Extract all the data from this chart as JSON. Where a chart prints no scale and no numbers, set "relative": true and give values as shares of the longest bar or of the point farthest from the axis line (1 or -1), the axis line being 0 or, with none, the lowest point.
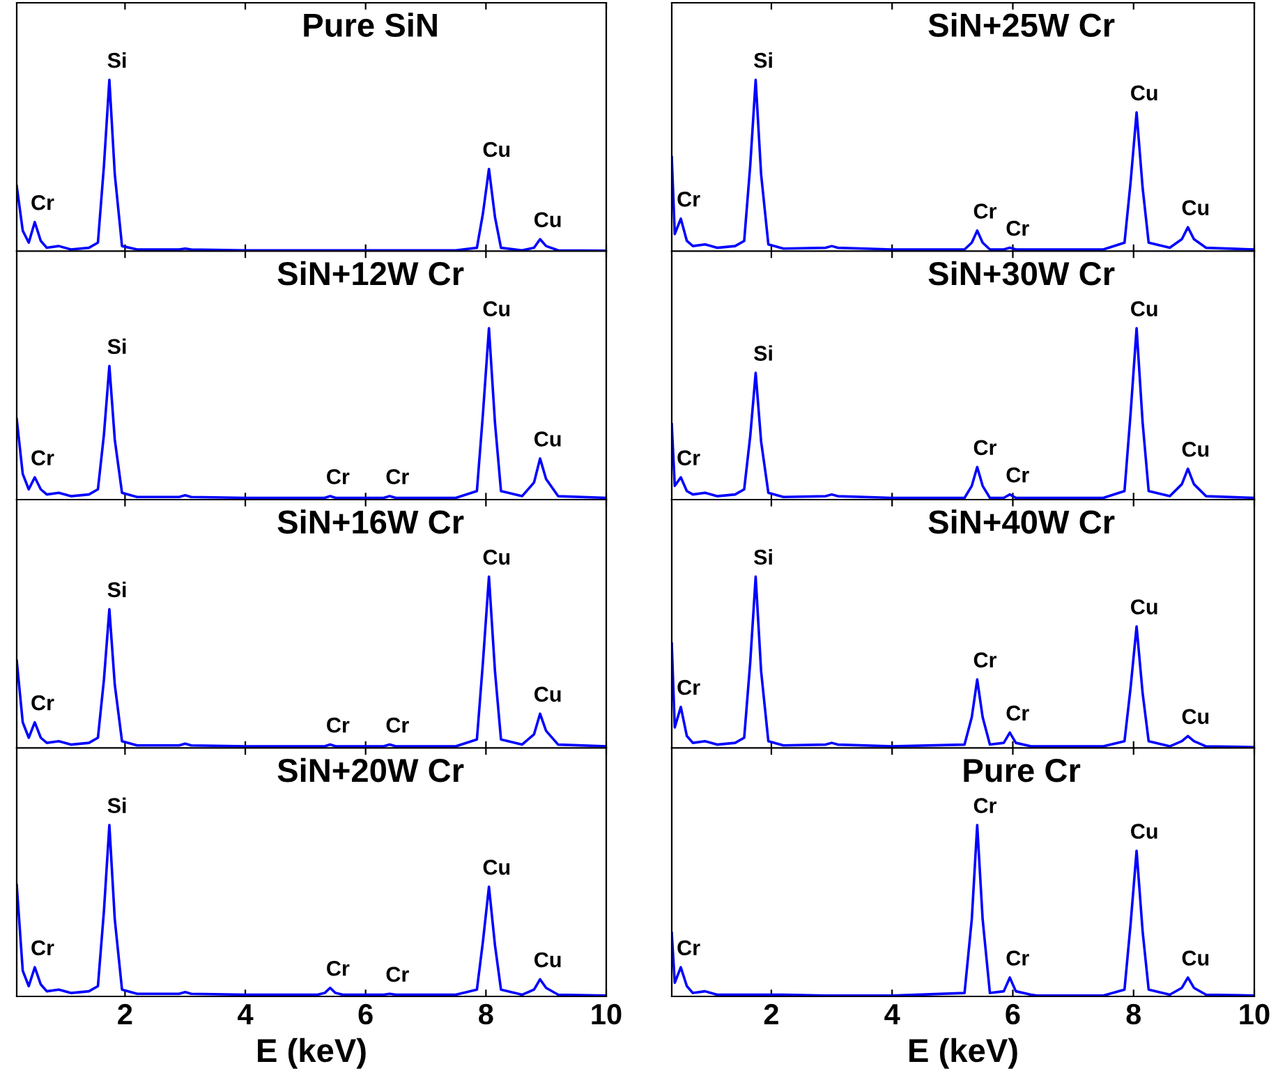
{
  "chart_data": [
    {
      "type": "line",
      "title": "Pure SiN",
      "relative": true,
      "xlim": [
        0.2,
        10
      ],
      "xticks": [
        2,
        4,
        6,
        8,
        10
      ],
      "tick_labels": false,
      "series": [
        {
          "color": "#0000ff",
          "x": [
            0.2,
            0.3,
            0.4,
            0.5,
            0.6,
            0.7,
            0.9,
            1.1,
            1.4,
            1.55,
            1.65,
            1.74,
            1.83,
            1.95,
            2.2,
            2.9,
            3.0,
            3.1,
            4.0,
            5.2,
            5.32,
            5.41,
            5.5,
            5.62,
            5.85,
            5.95,
            6.05,
            6.3,
            6.4,
            6.5,
            7.5,
            7.85,
            7.95,
            8.05,
            8.15,
            8.25,
            8.6,
            8.8,
            8.9,
            9.0,
            9.2,
            10
          ],
          "values": [
            0.38,
            0.12,
            0.05,
            0.17,
            0.06,
            0.02,
            0.03,
            0.01,
            0.02,
            0.05,
            0.5,
            1,
            0.45,
            0.03,
            0.01,
            0.01,
            0.015,
            0.01,
            0.005,
            0.005,
            0.005,
            0.005,
            0.005,
            0.005,
            0.005,
            0.005,
            0.005,
            0.005,
            0.005,
            0.005,
            0.005,
            0.02,
            0.22,
            0.48,
            0.2,
            0.02,
            0.005,
            0.02,
            0.07,
            0.03,
            0.005,
            0.003
          ]
        }
      ],
      "annotations": [
        {
          "text": "Si",
          "x": 1.74,
          "y": 1
        },
        {
          "text": "Cr",
          "x": 0.5,
          "y": 0.17
        },
        {
          "text": "Cu",
          "x": 8.05,
          "y": 0.48
        },
        {
          "text": "Cu",
          "x": 8.9,
          "y": 0.07
        }
      ]
    },
    {
      "type": "line",
      "title": "SiN+25W Cr",
      "relative": true,
      "xlim": [
        0.35,
        10
      ],
      "xticks": [
        2,
        4,
        6,
        8,
        10
      ],
      "tick_labels": false,
      "series": [
        {
          "color": "#0000ff",
          "x": [
            0.35,
            0.4,
            0.5,
            0.6,
            0.7,
            0.9,
            1.1,
            1.4,
            1.55,
            1.65,
            1.74,
            1.83,
            1.95,
            2.2,
            2.9,
            3.0,
            3.1,
            4.0,
            5.2,
            5.32,
            5.41,
            5.5,
            5.62,
            5.85,
            5.95,
            6.05,
            6.3,
            6.4,
            6.5,
            7.5,
            7.85,
            7.95,
            8.05,
            8.15,
            8.25,
            8.6,
            8.8,
            8.9,
            9.0,
            9.2,
            10
          ],
          "values": [
            0.55,
            0.1,
            0.19,
            0.06,
            0.03,
            0.04,
            0.02,
            0.03,
            0.06,
            0.5,
            1,
            0.45,
            0.04,
            0.015,
            0.02,
            0.03,
            0.02,
            0.01,
            0.01,
            0.05,
            0.12,
            0.05,
            0.01,
            0.01,
            0.02,
            0.01,
            0.01,
            0.01,
            0.01,
            0.01,
            0.05,
            0.4,
            0.81,
            0.37,
            0.05,
            0.02,
            0.07,
            0.14,
            0.07,
            0.02,
            0.01
          ]
        }
      ],
      "annotations": [
        {
          "text": "Si",
          "x": 1.74,
          "y": 1
        },
        {
          "text": "Cr",
          "x": 0.5,
          "y": 0.19
        },
        {
          "text": "Cr",
          "x": 5.41,
          "y": 0.12
        },
        {
          "text": "Cr",
          "x": 5.95,
          "y": 0.02
        },
        {
          "text": "Cu",
          "x": 8.05,
          "y": 0.81
        },
        {
          "text": "Cu",
          "x": 8.9,
          "y": 0.14
        }
      ]
    },
    {
      "type": "line",
      "title": "SiN+12W Cr",
      "relative": true,
      "xlim": [
        0.2,
        10
      ],
      "xticks": [
        2,
        4,
        6,
        8,
        10
      ],
      "tick_labels": false,
      "series": [
        {
          "color": "#0000ff",
          "x": [
            0.2,
            0.3,
            0.4,
            0.5,
            0.6,
            0.7,
            0.9,
            1.1,
            1.4,
            1.55,
            1.65,
            1.74,
            1.83,
            1.95,
            2.2,
            2.9,
            3.0,
            3.1,
            4.0,
            5.2,
            5.32,
            5.41,
            5.5,
            5.62,
            5.85,
            5.95,
            6.05,
            6.3,
            6.4,
            6.5,
            7.5,
            7.85,
            7.95,
            8.05,
            8.15,
            8.25,
            8.6,
            8.8,
            8.9,
            9.0,
            9.2,
            10
          ],
          "values": [
            0.47,
            0.15,
            0.06,
            0.13,
            0.06,
            0.03,
            0.04,
            0.02,
            0.03,
            0.06,
            0.38,
            0.78,
            0.35,
            0.04,
            0.015,
            0.015,
            0.025,
            0.015,
            0.01,
            0.01,
            0.01,
            0.02,
            0.01,
            0.01,
            0.01,
            0.01,
            0.01,
            0.01,
            0.02,
            0.01,
            0.01,
            0.05,
            0.5,
            1,
            0.45,
            0.05,
            0.02,
            0.1,
            0.24,
            0.12,
            0.02,
            0.01
          ]
        }
      ],
      "annotations": [
        {
          "text": "Si",
          "x": 1.74,
          "y": 0.78
        },
        {
          "text": "Cr",
          "x": 0.5,
          "y": 0.13
        },
        {
          "text": "Cr",
          "x": 5.41,
          "y": 0.02
        },
        {
          "text": "Cr",
          "x": 6.4,
          "y": 0.02
        },
        {
          "text": "Cu",
          "x": 8.05,
          "y": 1
        },
        {
          "text": "Cu",
          "x": 8.9,
          "y": 0.24
        }
      ]
    },
    {
      "type": "line",
      "title": "SiN+30W Cr",
      "relative": true,
      "xlim": [
        0.35,
        10
      ],
      "xticks": [
        2,
        4,
        6,
        8,
        10
      ],
      "tick_labels": false,
      "series": [
        {
          "color": "#0000ff",
          "x": [
            0.35,
            0.4,
            0.5,
            0.6,
            0.7,
            0.9,
            1.1,
            1.4,
            1.55,
            1.65,
            1.74,
            1.83,
            1.95,
            2.2,
            2.9,
            3.0,
            3.1,
            4.0,
            5.2,
            5.32,
            5.41,
            5.5,
            5.62,
            5.85,
            5.95,
            6.05,
            6.3,
            6.4,
            6.5,
            7.5,
            7.85,
            7.95,
            8.05,
            8.15,
            8.25,
            8.6,
            8.8,
            8.9,
            9.0,
            9.2,
            10
          ],
          "values": [
            0.44,
            0.08,
            0.13,
            0.05,
            0.03,
            0.04,
            0.02,
            0.03,
            0.06,
            0.37,
            0.74,
            0.34,
            0.04,
            0.015,
            0.02,
            0.03,
            0.02,
            0.01,
            0.01,
            0.08,
            0.19,
            0.08,
            0.01,
            0.01,
            0.03,
            0.01,
            0.01,
            0.01,
            0.01,
            0.01,
            0.05,
            0.5,
            1,
            0.45,
            0.05,
            0.02,
            0.09,
            0.18,
            0.09,
            0.02,
            0.01
          ]
        }
      ],
      "annotations": [
        {
          "text": "Si",
          "x": 1.74,
          "y": 0.74
        },
        {
          "text": "Cr",
          "x": 0.5,
          "y": 0.13
        },
        {
          "text": "Cr",
          "x": 5.41,
          "y": 0.19
        },
        {
          "text": "Cr",
          "x": 5.95,
          "y": 0.03
        },
        {
          "text": "Cu",
          "x": 8.05,
          "y": 1
        },
        {
          "text": "Cu",
          "x": 8.9,
          "y": 0.18
        }
      ]
    },
    {
      "type": "line",
      "title": "SiN+16W Cr",
      "relative": true,
      "xlim": [
        0.2,
        10
      ],
      "xticks": [
        2,
        4,
        6,
        8,
        10
      ],
      "tick_labels": false,
      "series": [
        {
          "color": "#0000ff",
          "x": [
            0.2,
            0.3,
            0.4,
            0.5,
            0.6,
            0.7,
            0.9,
            1.1,
            1.4,
            1.55,
            1.65,
            1.74,
            1.83,
            1.95,
            2.2,
            2.9,
            3.0,
            3.1,
            4.0,
            5.2,
            5.32,
            5.41,
            5.5,
            5.62,
            5.85,
            5.95,
            6.05,
            6.3,
            6.4,
            6.5,
            7.5,
            7.85,
            7.95,
            8.05,
            8.15,
            8.25,
            8.6,
            8.8,
            8.9,
            9.0,
            9.2,
            10
          ],
          "values": [
            0.51,
            0.15,
            0.06,
            0.15,
            0.06,
            0.03,
            0.04,
            0.02,
            0.03,
            0.06,
            0.4,
            0.81,
            0.37,
            0.04,
            0.015,
            0.015,
            0.025,
            0.015,
            0.01,
            0.01,
            0.01,
            0.02,
            0.01,
            0.01,
            0.01,
            0.01,
            0.01,
            0.01,
            0.02,
            0.01,
            0.01,
            0.05,
            0.5,
            1,
            0.45,
            0.05,
            0.02,
            0.08,
            0.2,
            0.1,
            0.02,
            0.01
          ]
        }
      ],
      "annotations": [
        {
          "text": "Si",
          "x": 1.74,
          "y": 0.81
        },
        {
          "text": "Cr",
          "x": 0.5,
          "y": 0.15
        },
        {
          "text": "Cr",
          "x": 5.41,
          "y": 0.02
        },
        {
          "text": "Cr",
          "x": 6.4,
          "y": 0.02
        },
        {
          "text": "Cu",
          "x": 8.05,
          "y": 1
        },
        {
          "text": "Cu",
          "x": 8.9,
          "y": 0.2
        }
      ]
    },
    {
      "type": "line",
      "title": "SiN+40W Cr",
      "relative": true,
      "xlim": [
        0.35,
        10
      ],
      "xticks": [
        2,
        4,
        6,
        8,
        10
      ],
      "tick_labels": false,
      "series": [
        {
          "color": "#0000ff",
          "x": [
            0.35,
            0.4,
            0.5,
            0.6,
            0.7,
            0.9,
            1.1,
            1.4,
            1.55,
            1.65,
            1.74,
            1.83,
            1.95,
            2.2,
            2.9,
            3.0,
            3.1,
            4.0,
            5.2,
            5.32,
            5.41,
            5.5,
            5.62,
            5.85,
            5.95,
            6.05,
            6.3,
            6.4,
            6.5,
            7.5,
            7.85,
            7.95,
            8.05,
            8.15,
            8.25,
            8.6,
            8.8,
            8.9,
            9.0,
            9.2,
            10
          ],
          "values": [
            0.61,
            0.12,
            0.24,
            0.07,
            0.03,
            0.04,
            0.02,
            0.03,
            0.06,
            0.5,
            1,
            0.45,
            0.04,
            0.015,
            0.02,
            0.03,
            0.02,
            0.01,
            0.02,
            0.18,
            0.4,
            0.18,
            0.02,
            0.03,
            0.09,
            0.03,
            0.01,
            0.01,
            0.01,
            0.01,
            0.04,
            0.35,
            0.71,
            0.32,
            0.04,
            0.01,
            0.04,
            0.07,
            0.04,
            0.01,
            0.005
          ]
        }
      ],
      "annotations": [
        {
          "text": "Si",
          "x": 1.74,
          "y": 1
        },
        {
          "text": "Cr",
          "x": 0.5,
          "y": 0.24
        },
        {
          "text": "Cr",
          "x": 5.41,
          "y": 0.4
        },
        {
          "text": "Cr",
          "x": 5.95,
          "y": 0.09
        },
        {
          "text": "Cu",
          "x": 8.05,
          "y": 0.71
        },
        {
          "text": "Cu",
          "x": 8.9,
          "y": 0.07
        }
      ]
    },
    {
      "type": "line",
      "title": "SiN+20W Cr",
      "relative": true,
      "xlim": [
        0.2,
        10
      ],
      "xticks": [
        2,
        4,
        6,
        8,
        10
      ],
      "tick_labels": "x",
      "xlabel": "E (keV)",
      "series": [
        {
          "color": "#0000ff",
          "x": [
            0.2,
            0.3,
            0.4,
            0.5,
            0.6,
            0.7,
            0.9,
            1.1,
            1.4,
            1.55,
            1.65,
            1.74,
            1.83,
            1.95,
            2.2,
            2.9,
            3.0,
            3.1,
            4.0,
            5.2,
            5.32,
            5.41,
            5.5,
            5.62,
            5.85,
            5.95,
            6.05,
            6.3,
            6.4,
            6.5,
            7.5,
            7.85,
            7.95,
            8.05,
            8.15,
            8.25,
            8.6,
            8.8,
            8.9,
            9.0,
            9.2,
            10
          ],
          "values": [
            0.65,
            0.15,
            0.06,
            0.17,
            0.07,
            0.03,
            0.04,
            0.02,
            0.03,
            0.06,
            0.5,
            1,
            0.45,
            0.04,
            0.015,
            0.015,
            0.025,
            0.015,
            0.01,
            0.01,
            0.02,
            0.05,
            0.02,
            0.01,
            0.01,
            0.01,
            0.01,
            0.01,
            0.015,
            0.01,
            0.01,
            0.04,
            0.32,
            0.64,
            0.3,
            0.04,
            0.01,
            0.04,
            0.1,
            0.05,
            0.01,
            0.005
          ]
        }
      ],
      "annotations": [
        {
          "text": "Si",
          "x": 1.74,
          "y": 1
        },
        {
          "text": "Cr",
          "x": 0.5,
          "y": 0.17
        },
        {
          "text": "Cr",
          "x": 5.41,
          "y": 0.05
        },
        {
          "text": "Cr",
          "x": 6.4,
          "y": 0.015
        },
        {
          "text": "Cu",
          "x": 8.05,
          "y": 0.64
        },
        {
          "text": "Cu",
          "x": 8.9,
          "y": 0.1
        }
      ]
    },
    {
      "type": "line",
      "title": "Pure Cr",
      "relative": true,
      "xlim": [
        0.35,
        10
      ],
      "xticks": [
        2,
        4,
        6,
        8,
        10
      ],
      "tick_labels": "x",
      "xlabel": "E (keV)",
      "series": [
        {
          "color": "#0000ff",
          "x": [
            0.35,
            0.4,
            0.5,
            0.6,
            0.7,
            0.9,
            1.1,
            1.4,
            1.55,
            1.65,
            1.74,
            1.83,
            1.95,
            2.2,
            2.9,
            3.0,
            3.1,
            4.0,
            5.2,
            5.32,
            5.41,
            5.5,
            5.62,
            5.85,
            5.95,
            6.05,
            6.3,
            6.4,
            6.5,
            7.5,
            7.85,
            7.95,
            8.05,
            8.15,
            8.25,
            8.6,
            8.8,
            8.9,
            9.0,
            9.2,
            10
          ],
          "values": [
            0.37,
            0.08,
            0.17,
            0.06,
            0.02,
            0.03,
            0.01,
            0.01,
            0.01,
            0.01,
            0.01,
            0.01,
            0.01,
            0.01,
            0.005,
            0.005,
            0.005,
            0.005,
            0.02,
            0.45,
            1,
            0.45,
            0.02,
            0.03,
            0.11,
            0.03,
            0.01,
            0.005,
            0.005,
            0.005,
            0.04,
            0.42,
            0.85,
            0.38,
            0.04,
            0.01,
            0.05,
            0.11,
            0.05,
            0.01,
            0.005
          ]
        }
      ],
      "annotations": [
        {
          "text": "Cr",
          "x": 5.41,
          "y": 1
        },
        {
          "text": "Cr",
          "x": 0.5,
          "y": 0.17
        },
        {
          "text": "Cr",
          "x": 5.95,
          "y": 0.11
        },
        {
          "text": "Cu",
          "x": 8.05,
          "y": 0.85
        },
        {
          "text": "Cu",
          "x": 8.9,
          "y": 0.11
        }
      ]
    }
  ]
}
